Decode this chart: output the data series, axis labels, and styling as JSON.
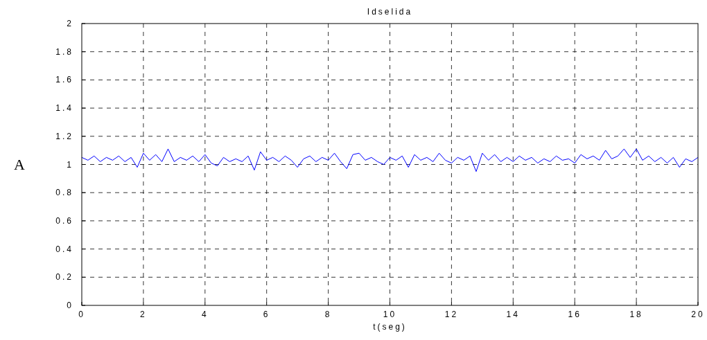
{
  "chart_data": {
    "type": "line",
    "title": "Idselida",
    "xlabel": "t(seg)",
    "ylabel": "A",
    "x": [
      0,
      0.2,
      0.4,
      0.6,
      0.8,
      1,
      1.2,
      1.4,
      1.6,
      1.8,
      2,
      2.2,
      2.4,
      2.6,
      2.8,
      3,
      3.2,
      3.4,
      3.6,
      3.8,
      4,
      4.2,
      4.4,
      4.6,
      4.8,
      5,
      5.2,
      5.4,
      5.6,
      5.8,
      6,
      6.2,
      6.4,
      6.6,
      6.8,
      7,
      7.2,
      7.4,
      7.6,
      7.8,
      8,
      8.2,
      8.4,
      8.6,
      8.8,
      9,
      9.2,
      9.4,
      9.6,
      9.8,
      10,
      10.2,
      10.4,
      10.6,
      10.8,
      11,
      11.2,
      11.4,
      11.6,
      11.8,
      12,
      12.2,
      12.4,
      12.6,
      12.8,
      13,
      13.2,
      13.4,
      13.6,
      13.8,
      14,
      14.2,
      14.4,
      14.6,
      14.8,
      15,
      15.2,
      15.4,
      15.6,
      15.8,
      16,
      16.2,
      16.4,
      16.6,
      16.8,
      17,
      17.2,
      17.4,
      17.6,
      17.8,
      18,
      18.2,
      18.4,
      18.6,
      18.8,
      19,
      19.2,
      19.4,
      19.6,
      19.8,
      20
    ],
    "series": [
      {
        "color": "#0000ff",
        "values": [
          1.05,
          1.03,
          1.06,
          1.02,
          1.05,
          1.03,
          1.06,
          1.02,
          1.05,
          0.98,
          1.08,
          1.03,
          1.07,
          1.02,
          1.11,
          1.02,
          1.05,
          1.03,
          1.06,
          1.02,
          1.07,
          1.01,
          0.99,
          1.05,
          1.02,
          1.04,
          1.02,
          1.06,
          0.96,
          1.09,
          1.03,
          1.05,
          1.02,
          1.06,
          1.03,
          0.98,
          1.04,
          1.06,
          1.02,
          1.05,
          1.03,
          1.08,
          1.02,
          0.97,
          1.07,
          1.08,
          1.03,
          1.05,
          1.02,
          1.0,
          1.05,
          1.03,
          1.06,
          0.98,
          1.07,
          1.03,
          1.05,
          1.02,
          1.08,
          1.03,
          1.01,
          1.05,
          1.03,
          1.06,
          0.95,
          1.08,
          1.03,
          1.07,
          1.02,
          1.05,
          1.02,
          1.06,
          1.03,
          1.05,
          1.01,
          1.04,
          1.02,
          1.06,
          1.03,
          1.04,
          1.01,
          1.07,
          1.04,
          1.06,
          1.03,
          1.1,
          1.04,
          1.06,
          1.11,
          1.05,
          1.11,
          1.03,
          1.06,
          1.02,
          1.05,
          1.01,
          1.05,
          0.98,
          1.04,
          1.02,
          1.05
        ]
      }
    ],
    "xlim": [
      0,
      20
    ],
    "xticks": [
      0,
      2,
      4,
      6,
      8,
      10,
      12,
      14,
      16,
      18,
      20
    ],
    "ylim": [
      0,
      2
    ],
    "yticks": [
      0,
      0.2,
      0.4,
      0.6,
      0.8,
      1,
      1.2,
      1.4,
      1.6,
      1.8,
      2
    ],
    "grid": true,
    "line_style": "solid"
  }
}
